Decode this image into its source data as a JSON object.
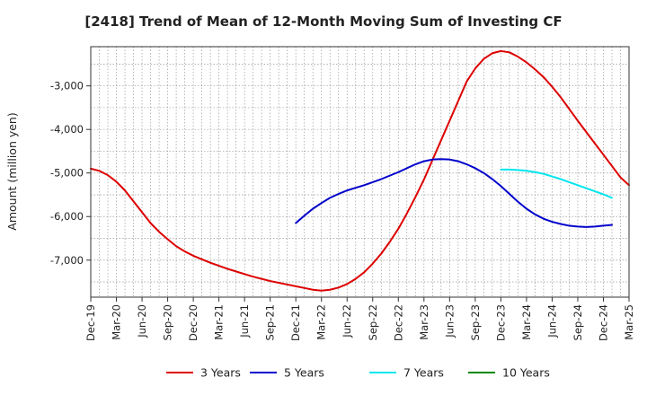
{
  "chart_data": {
    "type": "line",
    "title": "[2418]  Trend of Mean of 12-Month Moving Sum of Investing CF",
    "xlabel": "",
    "ylabel": "Amount (million yen)",
    "x_ticks": [
      "Dec-19",
      "Mar-20",
      "Jun-20",
      "Sep-20",
      "Dec-20",
      "Mar-21",
      "Jun-21",
      "Sep-21",
      "Dec-21",
      "Mar-22",
      "Jun-22",
      "Sep-22",
      "Dec-22",
      "Mar-23",
      "Jun-23",
      "Sep-23",
      "Dec-23",
      "Mar-24",
      "Jun-24",
      "Sep-24",
      "Dec-24",
      "Mar-25"
    ],
    "y_ticks": [
      -3000,
      -4000,
      -5000,
      -6000,
      -7000
    ],
    "y_tick_labels": [
      "-3,000",
      "-4,000",
      "-5,000",
      "-6,000",
      "-7,000"
    ],
    "ylim": [
      -7850,
      -2100
    ],
    "grid": true,
    "legend_position": "bottom",
    "series": [
      {
        "name": "3 Years",
        "color": "#dd0000",
        "start_index": 0,
        "values": [
          -4900,
          -4950,
          -5050,
          -5200,
          -5400,
          -5650,
          -5900,
          -6150,
          -6350,
          -6520,
          -6680,
          -6800,
          -6900,
          -6980,
          -7060,
          -7130,
          -7200,
          -7260,
          -7320,
          -7380,
          -7430,
          -7480,
          -7520,
          -7560,
          -7600,
          -7640,
          -7680,
          -7700,
          -7680,
          -7630,
          -7550,
          -7430,
          -7280,
          -7080,
          -6850,
          -6580,
          -6280,
          -5930,
          -5550,
          -5150,
          -4700,
          -4250,
          -3800,
          -3350,
          -2900,
          -2600,
          -2380,
          -2250,
          -2200,
          -2230,
          -2330,
          -2460,
          -2620,
          -2800,
          -3020,
          -3260,
          -3530,
          -3800,
          -4060,
          -4320,
          -4580,
          -4840,
          -5100,
          -5280
        ]
      },
      {
        "name": "5 Years",
        "color": "#0000cc",
        "start_index": 24,
        "values": [
          -6150,
          -5980,
          -5820,
          -5690,
          -5570,
          -5480,
          -5400,
          -5340,
          -5280,
          -5210,
          -5140,
          -5060,
          -4980,
          -4890,
          -4800,
          -4730,
          -4690,
          -4680,
          -4690,
          -4730,
          -4800,
          -4890,
          -5000,
          -5140,
          -5300,
          -5480,
          -5660,
          -5820,
          -5950,
          -6050,
          -6120,
          -6170,
          -6210,
          -6230,
          -6240,
          -6230,
          -6210,
          -6190
        ]
      },
      {
        "name": "7 Years",
        "color": "#00e5ee",
        "start_index": 48,
        "values": [
          -4920,
          -4920,
          -4930,
          -4950,
          -4980,
          -5020,
          -5080,
          -5140,
          -5210,
          -5280,
          -5350,
          -5420,
          -5490,
          -5570
        ]
      },
      {
        "name": "10 Years",
        "color": "#008800",
        "start_index": 0,
        "values": []
      }
    ]
  }
}
